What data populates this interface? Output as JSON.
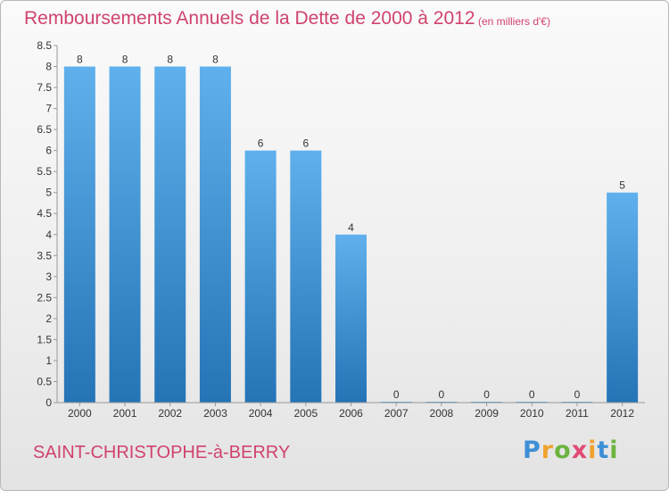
{
  "title": "Remboursements Annuels de la Dette de 2000 à 2012",
  "subtitle": "(en milliers d'€)",
  "commune": "SAINT-CHRISTOPHE-à-BERRY",
  "logo": {
    "letters": [
      "P",
      "r",
      "o",
      "x",
      "i",
      "t",
      "i"
    ],
    "colors": [
      "#3d8fd6",
      "#f0a22e",
      "#6cb33f",
      "#e14b73",
      "#f0a22e",
      "#3d8fd6",
      "#6cb33f"
    ]
  },
  "colors": {
    "bar_top": "#5fb0ec",
    "bar_bottom": "#2474b6",
    "title": "#d0436d"
  },
  "chart_data": {
    "type": "bar",
    "categories": [
      "2000",
      "2001",
      "2002",
      "2003",
      "2004",
      "2005",
      "2006",
      "2007",
      "2008",
      "2009",
      "2010",
      "2011",
      "2012"
    ],
    "values": [
      8,
      8,
      8,
      8,
      6,
      6,
      4,
      0,
      0,
      0,
      0,
      0,
      5
    ],
    "value_labels": [
      "8",
      "8",
      "8",
      "8",
      "6",
      "6",
      "4",
      "0",
      "0",
      "0",
      "0",
      "0",
      "5"
    ],
    "ylim": [
      0,
      8.5
    ],
    "yticks": [
      0,
      0.5,
      1,
      1.5,
      2,
      2.5,
      3,
      3.5,
      4,
      4.5,
      5,
      5.5,
      6,
      6.5,
      7,
      7.5,
      8,
      8.5
    ],
    "ytick_labels": [
      "0",
      "0.5",
      "1",
      "1.5",
      "2",
      "2.5",
      "3",
      "3.5",
      "4",
      "4.5",
      "5",
      "5.5",
      "6",
      "6.5",
      "7",
      "7.5",
      "8",
      "8.5"
    ],
    "grid": false,
    "xlabel": "",
    "ylabel": ""
  }
}
